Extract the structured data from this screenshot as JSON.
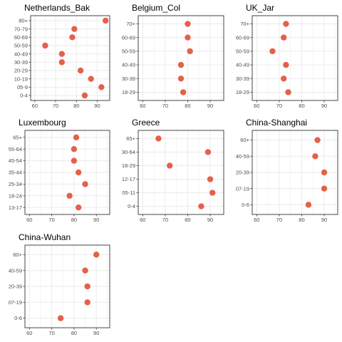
{
  "colors": {
    "point": "#e5604a",
    "grid": "#ebebeb",
    "frame": "#333333",
    "tick_text": "#4d4d4d"
  },
  "chart_data": [
    {
      "type": "scatter",
      "title": "Netherlands_Bak",
      "xlim": [
        58,
        96
      ],
      "xticks": [
        60,
        70,
        80,
        90
      ],
      "categories": [
        "0-4",
        "05-9",
        "10-19",
        "20-29",
        "30-39",
        "40-49",
        "50-59",
        "60-69",
        "70-79",
        "80+"
      ],
      "values": [
        84,
        92,
        87,
        82,
        73,
        73,
        65,
        78,
        79,
        94
      ]
    },
    {
      "type": "scatter",
      "title": "Belgium_Col",
      "xlim": [
        58,
        96
      ],
      "xticks": [
        60,
        70,
        80,
        90
      ],
      "categories": [
        "18-29",
        "30-39",
        "40-49",
        "50-59",
        "60-69",
        "70+"
      ],
      "values": [
        78,
        77,
        77,
        81,
        80,
        80
      ]
    },
    {
      "type": "scatter",
      "title": "UK_Jar",
      "xlim": [
        58,
        96
      ],
      "xticks": [
        60,
        70,
        80,
        90
      ],
      "categories": [
        "18-29",
        "30-39",
        "40-49",
        "50-59",
        "60-69",
        "70+"
      ],
      "values": [
        74,
        72,
        73,
        67,
        72,
        73
      ]
    },
    {
      "type": "scatter",
      "title": "Luxembourg",
      "xlim": [
        58,
        96
      ],
      "xticks": [
        60,
        70,
        80,
        90
      ],
      "categories": [
        "13-17",
        "18-24",
        "25-34",
        "35-44",
        "45-54",
        "55-64",
        "65+"
      ],
      "values": [
        82,
        78,
        85,
        82,
        80,
        80,
        81
      ]
    },
    {
      "type": "scatter",
      "title": "Greece",
      "xlim": [
        58,
        96
      ],
      "xticks": [
        60,
        70,
        80,
        90
      ],
      "categories": [
        "0-4",
        "05-11",
        "12-17",
        "18-29",
        "30-64",
        "65+"
      ],
      "values": [
        86,
        91,
        90,
        72,
        89,
        67
      ]
    },
    {
      "type": "scatter",
      "title": "China-Shanghai",
      "xlim": [
        58,
        96
      ],
      "xticks": [
        60,
        70,
        80,
        90
      ],
      "categories": [
        "0-6",
        "07-19",
        "20-39",
        "40-59",
        "60+"
      ],
      "values": [
        83,
        90,
        90,
        86,
        87
      ]
    },
    {
      "type": "scatter",
      "title": "China-Wuhan",
      "xlim": [
        58,
        96
      ],
      "xticks": [
        60,
        70,
        80,
        90
      ],
      "categories": [
        "0-6",
        "07-19",
        "20-39",
        "40-59",
        "60+"
      ],
      "values": [
        74,
        86,
        86,
        85,
        90
      ]
    }
  ]
}
